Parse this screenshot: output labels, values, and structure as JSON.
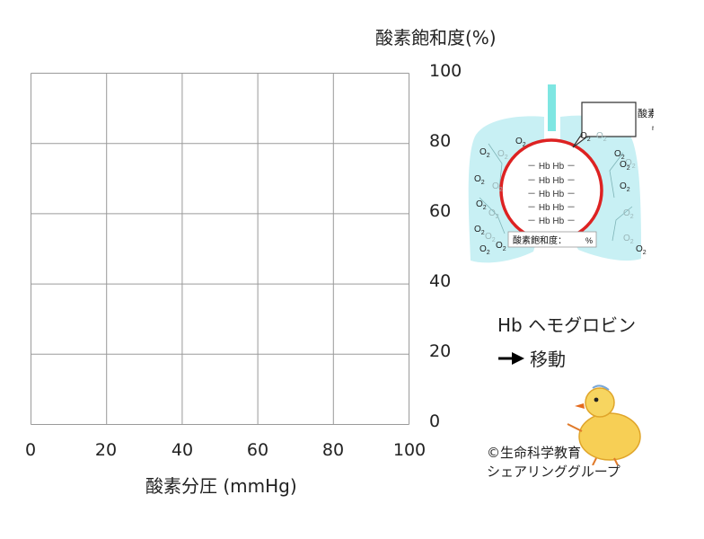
{
  "chart_data": {
    "type": "line",
    "xlabel": "酸素分圧 (mmHg)",
    "ylabel": "酸素飽和度(%)",
    "xlim": [
      0,
      100
    ],
    "ylim": [
      0,
      100
    ],
    "x_ticks": [
      "0",
      "20",
      "40",
      "60",
      "80",
      "100"
    ],
    "y_ticks": [
      "100",
      "80",
      "60",
      "40",
      "20",
      "0"
    ],
    "grid": true,
    "series": []
  },
  "lung_diagram": {
    "hb_rows": [
      "－ Hb Hb －",
      "－ Hb Hb －",
      "－ Hb Hb －",
      "－ Hb Hb －",
      "－ Hb Hb －"
    ],
    "saturation_label": "酸素飽和度：",
    "saturation_unit": "%",
    "callout_title": "酸素分圧",
    "callout_unit": "mmHg",
    "o2_text": "O",
    "o2_sub": "2",
    "colors": {
      "lung_fill": "#c8f0f4",
      "trachea": "#7ee6e2",
      "vessel": "#dd2222"
    }
  },
  "legend": {
    "hb_label": "Hb ヘモグロビン",
    "move_label": "移動"
  },
  "credit": {
    "line1": "©生命科学教育",
    "line2": "シェアリンググループ"
  }
}
